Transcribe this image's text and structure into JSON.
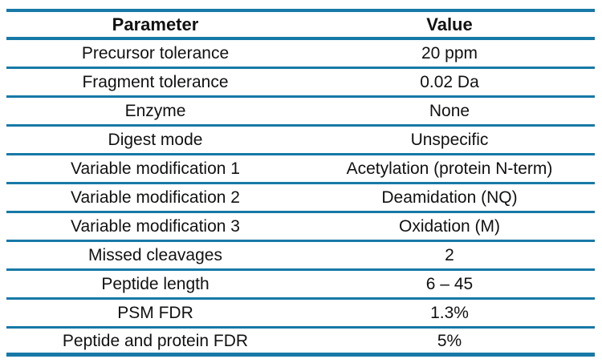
{
  "table": {
    "columns": {
      "parameter": "Parameter",
      "value": "Value"
    },
    "rows": [
      {
        "parameter": "Precursor tolerance",
        "value": "20 ppm"
      },
      {
        "parameter": "Fragment tolerance",
        "value": "0.02 Da"
      },
      {
        "parameter": "Enzyme",
        "value": "None"
      },
      {
        "parameter": "Digest mode",
        "value": "Unspecific"
      },
      {
        "parameter": "Variable modification 1",
        "value": "Acetylation (protein N-term)"
      },
      {
        "parameter": "Variable modification 2",
        "value": "Deamidation (NQ)"
      },
      {
        "parameter": "Variable modification 3",
        "value": "Oxidation (M)"
      },
      {
        "parameter": "Missed cleavages",
        "value": "2"
      },
      {
        "parameter": "Peptide length",
        "value": "6 – 45"
      },
      {
        "parameter": "PSM FDR",
        "value": "1.3%"
      },
      {
        "parameter": "Peptide and protein FDR",
        "value": "5%"
      }
    ],
    "colors": {
      "rule": "#1779a7",
      "text": "#111111",
      "background": "#ffffff"
    }
  }
}
